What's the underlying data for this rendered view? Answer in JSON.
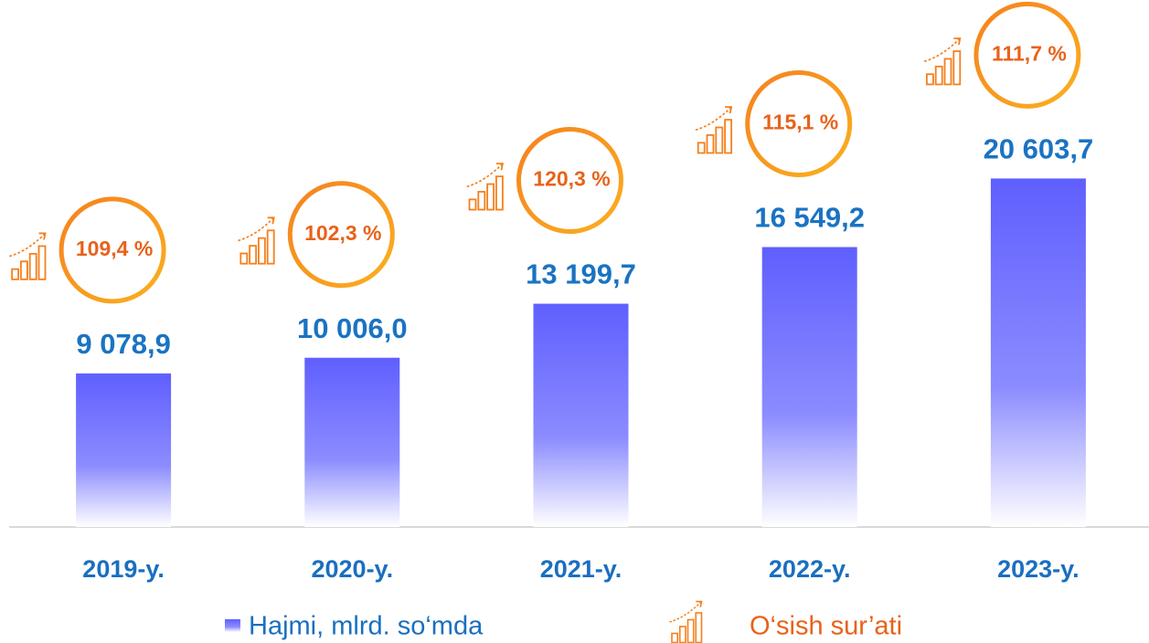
{
  "chart_data": {
    "type": "bar",
    "categories": [
      "2019-y.",
      "2020-y.",
      "2021-y.",
      "2022-y.",
      "2023-y."
    ],
    "series": [
      {
        "name": "Hajmi, mlrd. so‘mda",
        "color": "#5f5fff",
        "values": [
          9078.9,
          10006.0,
          13199.7,
          16549.2,
          20603.7
        ],
        "value_labels": [
          "9 078,9",
          "10 006,0",
          "13 199,7",
          "16 549,2",
          "20 603,7"
        ]
      },
      {
        "name": "O‘sish sur’ati",
        "color": "#f5811f",
        "values": [
          109.4,
          102.3,
          120.3,
          115.1,
          111.7
        ],
        "value_labels": [
          "109,4 %",
          "102,3 %",
          "120,3 %",
          "115,1 %",
          "111,7 %"
        ]
      }
    ],
    "ylim": [
      0,
      25000
    ]
  }
}
